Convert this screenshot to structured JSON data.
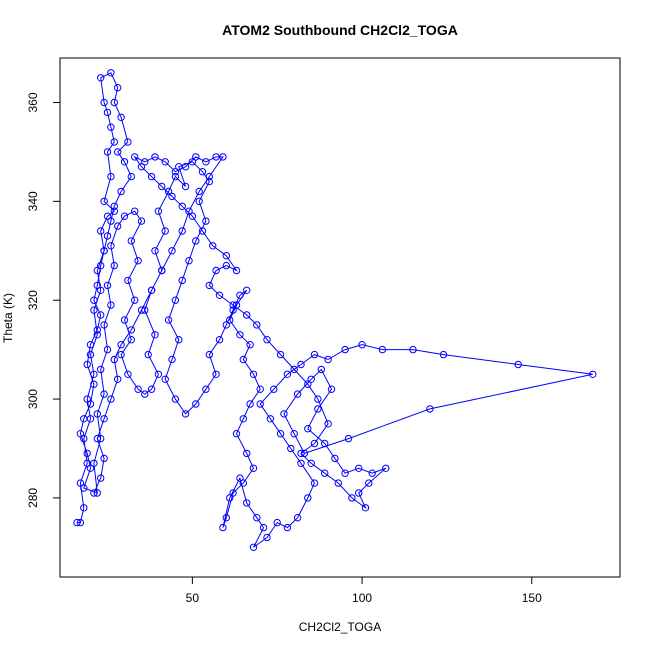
{
  "chart_data": {
    "type": "line",
    "title": "ATOM2 Southbound CH2Cl2_TOGA",
    "xlabel": "CH2Cl2_TOGA",
    "ylabel": "Theta (K)",
    "xlim": [
      11,
      176
    ],
    "ylim": [
      264,
      369
    ],
    "xticks": [
      50,
      100,
      150
    ],
    "yticks": [
      280,
      300,
      320,
      340,
      360
    ],
    "grid": false,
    "legend": "none",
    "marker": "open-circle",
    "series_color": "#0000ff",
    "series": [
      {
        "points": [
          [
            16,
            275
          ],
          [
            17,
            275
          ],
          [
            18,
            278
          ],
          [
            17,
            283
          ],
          [
            19,
            287
          ],
          [
            18,
            292
          ],
          [
            20,
            296
          ],
          [
            19,
            300
          ],
          [
            21,
            305
          ],
          [
            20,
            309
          ],
          [
            22,
            313
          ],
          [
            21,
            318
          ],
          [
            23,
            322
          ],
          [
            22,
            326
          ],
          [
            24,
            330
          ],
          [
            23,
            334
          ],
          [
            25,
            337
          ],
          [
            27,
            338
          ],
          [
            24,
            340
          ],
          [
            26,
            345
          ],
          [
            25,
            350
          ],
          [
            27,
            352
          ],
          [
            26,
            355
          ],
          [
            25,
            358
          ],
          [
            24,
            360
          ],
          [
            23,
            365
          ],
          [
            26,
            366
          ],
          [
            28,
            363
          ],
          [
            27,
            360
          ],
          [
            29,
            357
          ],
          [
            31,
            352
          ],
          [
            28,
            350
          ],
          [
            30,
            348
          ],
          [
            32,
            345
          ],
          [
            29,
            342
          ],
          [
            27,
            339
          ],
          [
            26,
            336
          ],
          [
            25,
            333
          ],
          [
            24,
            330
          ],
          [
            23,
            327
          ],
          [
            22,
            323
          ],
          [
            21,
            320
          ],
          [
            23,
            317
          ],
          [
            22,
            314
          ],
          [
            20,
            311
          ],
          [
            19,
            307
          ],
          [
            21,
            303
          ],
          [
            20,
            299
          ],
          [
            18,
            296
          ],
          [
            17,
            293
          ],
          [
            19,
            289
          ],
          [
            20,
            286
          ],
          [
            18,
            282
          ],
          [
            22,
            281
          ],
          [
            21,
            287
          ],
          [
            23,
            292
          ],
          [
            22,
            297
          ],
          [
            24,
            301
          ],
          [
            23,
            306
          ],
          [
            25,
            310
          ],
          [
            24,
            315
          ],
          [
            26,
            319
          ],
          [
            25,
            323
          ],
          [
            27,
            327
          ],
          [
            26,
            331
          ],
          [
            28,
            335
          ],
          [
            30,
            337
          ],
          [
            33,
            338
          ],
          [
            35,
            336
          ],
          [
            32,
            332
          ],
          [
            34,
            328
          ],
          [
            31,
            324
          ],
          [
            33,
            320
          ],
          [
            30,
            316
          ],
          [
            32,
            312
          ],
          [
            29,
            309
          ],
          [
            31,
            305
          ],
          [
            34,
            302
          ],
          [
            36,
            301
          ],
          [
            38,
            302
          ],
          [
            40,
            305
          ],
          [
            37,
            309
          ],
          [
            39,
            313
          ],
          [
            36,
            318
          ],
          [
            38,
            322
          ],
          [
            41,
            326
          ],
          [
            39,
            330
          ],
          [
            42,
            334
          ],
          [
            40,
            338
          ],
          [
            43,
            342
          ],
          [
            45,
            345
          ],
          [
            48,
            343
          ],
          [
            46,
            347
          ],
          [
            50,
            348
          ],
          [
            53,
            346
          ],
          [
            55,
            344
          ],
          [
            52,
            340
          ],
          [
            54,
            336
          ],
          [
            51,
            332
          ],
          [
            49,
            328
          ],
          [
            47,
            324
          ],
          [
            45,
            320
          ],
          [
            43,
            316
          ],
          [
            46,
            312
          ],
          [
            44,
            308
          ],
          [
            42,
            304
          ],
          [
            45,
            300
          ],
          [
            48,
            297
          ],
          [
            51,
            299
          ],
          [
            54,
            302
          ],
          [
            57,
            305
          ],
          [
            55,
            309
          ],
          [
            58,
            312
          ],
          [
            60,
            315
          ],
          [
            62,
            318
          ],
          [
            64,
            321
          ],
          [
            66,
            322
          ],
          [
            63,
            319
          ],
          [
            61,
            316
          ],
          [
            64,
            313
          ],
          [
            67,
            311
          ],
          [
            65,
            308
          ],
          [
            68,
            305
          ],
          [
            70,
            302
          ],
          [
            67,
            299
          ],
          [
            65,
            296
          ],
          [
            63,
            293
          ],
          [
            66,
            289
          ],
          [
            68,
            286
          ],
          [
            65,
            283
          ],
          [
            62,
            281
          ],
          [
            60,
            276
          ],
          [
            59,
            274
          ],
          [
            61,
            280
          ],
          [
            64,
            284
          ],
          [
            66,
            279
          ],
          [
            69,
            276
          ],
          [
            71,
            274
          ],
          [
            68,
            270
          ],
          [
            72,
            272
          ],
          [
            75,
            275
          ],
          [
            78,
            274
          ],
          [
            81,
            276
          ],
          [
            84,
            280
          ],
          [
            86,
            283
          ],
          [
            82,
            287
          ],
          [
            79,
            290
          ],
          [
            76,
            293
          ],
          [
            73,
            296
          ],
          [
            70,
            299
          ],
          [
            74,
            302
          ],
          [
            78,
            305
          ],
          [
            82,
            307
          ],
          [
            86,
            309
          ],
          [
            90,
            308
          ],
          [
            95,
            310
          ],
          [
            100,
            311
          ],
          [
            106,
            310
          ],
          [
            115,
            310
          ],
          [
            124,
            309
          ],
          [
            146,
            307
          ],
          [
            168,
            305
          ],
          [
            120,
            298
          ],
          [
            96,
            292
          ],
          [
            83,
            289
          ],
          [
            80,
            293
          ],
          [
            77,
            297
          ],
          [
            81,
            301
          ],
          [
            85,
            304
          ],
          [
            88,
            306
          ],
          [
            91,
            302
          ],
          [
            87,
            298
          ],
          [
            84,
            294
          ],
          [
            89,
            291
          ],
          [
            92,
            288
          ],
          [
            95,
            285
          ],
          [
            99,
            286
          ],
          [
            103,
            285
          ],
          [
            107,
            286
          ],
          [
            102,
            283
          ],
          [
            99,
            281
          ],
          [
            101,
            278
          ],
          [
            97,
            280
          ],
          [
            93,
            283
          ],
          [
            89,
            285
          ],
          [
            85,
            287
          ],
          [
            82,
            289
          ],
          [
            86,
            291
          ],
          [
            90,
            295
          ],
          [
            87,
            300
          ],
          [
            84,
            303
          ],
          [
            80,
            306
          ],
          [
            76,
            309
          ],
          [
            72,
            312
          ],
          [
            69,
            315
          ],
          [
            66,
            317
          ],
          [
            62,
            319
          ],
          [
            58,
            321
          ],
          [
            55,
            323
          ],
          [
            57,
            326
          ],
          [
            60,
            327
          ],
          [
            63,
            326
          ],
          [
            60,
            329
          ],
          [
            56,
            331
          ],
          [
            53,
            334
          ],
          [
            50,
            337
          ],
          [
            47,
            339
          ],
          [
            44,
            341
          ],
          [
            41,
            343
          ],
          [
            38,
            345
          ],
          [
            35,
            347
          ],
          [
            33,
            349
          ],
          [
            36,
            348
          ],
          [
            39,
            349
          ],
          [
            42,
            348
          ],
          [
            45,
            346
          ],
          [
            48,
            347
          ],
          [
            51,
            349
          ],
          [
            54,
            348
          ],
          [
            57,
            349
          ],
          [
            59,
            349
          ],
          [
            55,
            345
          ],
          [
            52,
            342
          ],
          [
            49,
            338
          ],
          [
            47,
            334
          ],
          [
            44,
            330
          ],
          [
            41,
            326
          ],
          [
            38,
            322
          ],
          [
            35,
            318
          ],
          [
            32,
            314
          ],
          [
            29,
            311
          ],
          [
            27,
            308
          ],
          [
            28,
            304
          ],
          [
            26,
            300
          ],
          [
            24,
            296
          ],
          [
            22,
            292
          ],
          [
            24,
            288
          ],
          [
            23,
            284
          ],
          [
            21,
            281
          ]
        ]
      }
    ]
  }
}
